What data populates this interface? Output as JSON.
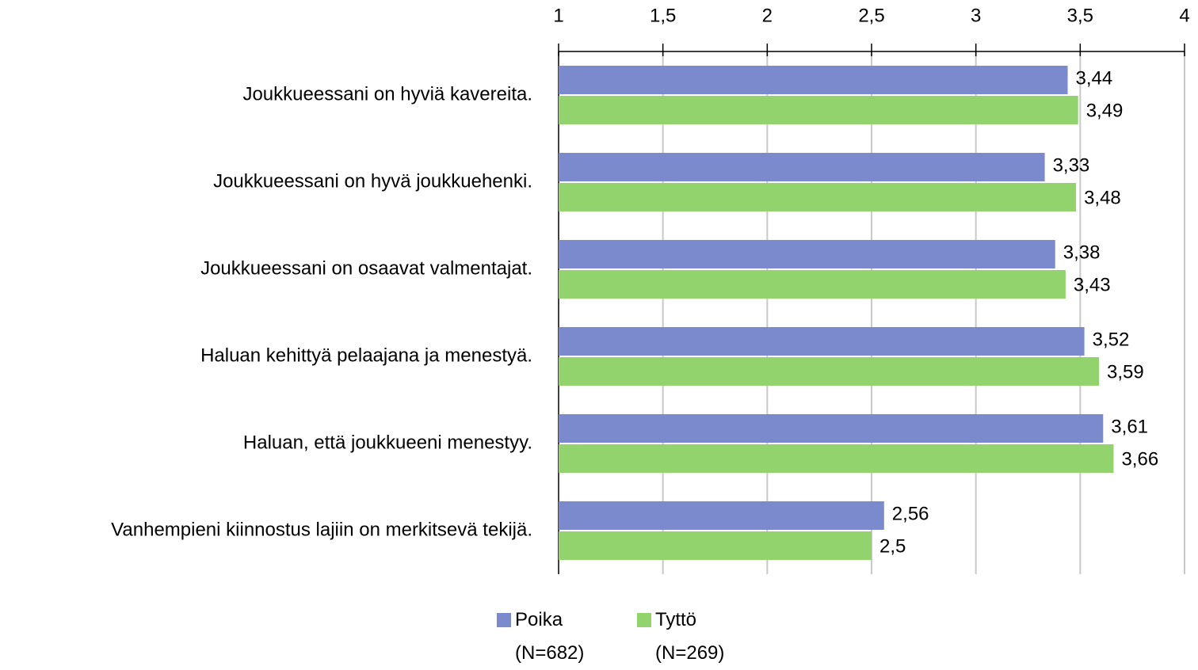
{
  "chart_data": {
    "type": "bar",
    "orientation": "horizontal",
    "categories": [
      "Joukkueessani on hyviä kavereita.",
      "Joukkueessani on hyvä joukkuehenki.",
      "Joukkueessani on osaavat valmentajat.",
      "Haluan kehittyä pelaajana ja menestyä.",
      "Haluan, että joukkueeni menestyy.",
      "Vanhempieni kiinnostus lajiin on merkitsevä tekijä."
    ],
    "series": [
      {
        "name": "Poika (N=682)",
        "color": "#7b8acd",
        "values": [
          3.44,
          3.33,
          3.38,
          3.52,
          3.61,
          2.56
        ],
        "value_labels": [
          "3,44",
          "3,33",
          "3,38",
          "3,52",
          "3,61",
          "2,56"
        ]
      },
      {
        "name": "Tyttö (N=269)",
        "color": "#92d36e",
        "values": [
          3.49,
          3.48,
          3.43,
          3.59,
          3.66,
          2.5
        ],
        "value_labels": [
          "3,49",
          "3,48",
          "3,43",
          "3,59",
          "3,66",
          "2,5"
        ]
      }
    ],
    "xlim": [
      1,
      4
    ],
    "xticks": [
      1,
      {
        "value": 1.5,
        "label": "1,5"
      },
      2,
      {
        "value": 2.5,
        "label": "2,5"
      },
      3,
      {
        "value": 3.5,
        "label": "3,5"
      },
      4
    ],
    "grid": true,
    "legend": "bottom"
  }
}
